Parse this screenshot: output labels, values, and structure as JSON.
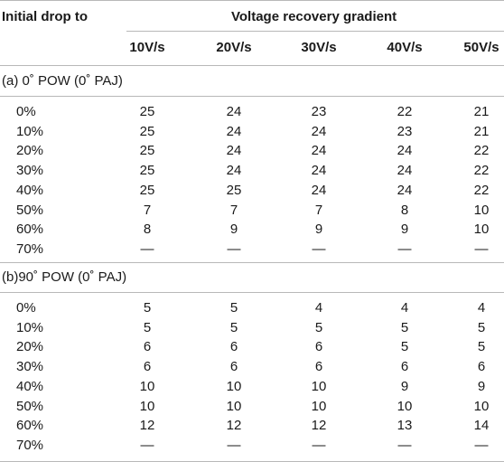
{
  "header": {
    "first_col": "Initial drop to",
    "group_label": "Voltage recovery gradient",
    "columns": [
      "10V/s",
      "20V/s",
      "30V/s",
      "40V/s",
      "50V/s"
    ]
  },
  "sections": [
    {
      "title": "(a) 0˚ POW (0˚ PAJ)",
      "rows": [
        {
          "label": "0%",
          "values": [
            "25",
            "24",
            "23",
            "22",
            "21"
          ]
        },
        {
          "label": "10%",
          "values": [
            "25",
            "24",
            "24",
            "23",
            "21"
          ]
        },
        {
          "label": "20%",
          "values": [
            "25",
            "24",
            "24",
            "24",
            "22"
          ]
        },
        {
          "label": "30%",
          "values": [
            "25",
            "24",
            "24",
            "24",
            "22"
          ]
        },
        {
          "label": "40%",
          "values": [
            "25",
            "25",
            "24",
            "24",
            "22"
          ]
        },
        {
          "label": "50%",
          "values": [
            "7",
            "7",
            "7",
            "8",
            "10"
          ]
        },
        {
          "label": "60%",
          "values": [
            "8",
            "9",
            "9",
            "9",
            "10"
          ]
        },
        {
          "label": "70%",
          "values": [
            "—",
            "—",
            "—",
            "—",
            "—"
          ]
        }
      ]
    },
    {
      "title": "(b)90˚ POW (0˚ PAJ)",
      "rows": [
        {
          "label": "0%",
          "values": [
            "5",
            "5",
            "4",
            "4",
            "4"
          ]
        },
        {
          "label": "10%",
          "values": [
            "5",
            "5",
            "5",
            "5",
            "5"
          ]
        },
        {
          "label": "20%",
          "values": [
            "6",
            "6",
            "6",
            "5",
            "5"
          ]
        },
        {
          "label": "30%",
          "values": [
            "6",
            "6",
            "6",
            "6",
            "6"
          ]
        },
        {
          "label": "40%",
          "values": [
            "10",
            "10",
            "10",
            "9",
            "9"
          ]
        },
        {
          "label": "50%",
          "values": [
            "10",
            "10",
            "10",
            "10",
            "10"
          ]
        },
        {
          "label": "60%",
          "values": [
            "12",
            "12",
            "12",
            "13",
            "14"
          ]
        },
        {
          "label": "70%",
          "values": [
            "—",
            "—",
            "—",
            "—",
            "—"
          ]
        }
      ]
    }
  ]
}
